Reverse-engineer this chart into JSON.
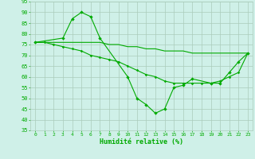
{
  "xlabel": "Humidité relative (%)",
  "background_color": "#cff0e8",
  "grid_color": "#aaccbb",
  "line_color": "#00aa00",
  "xlim": [
    -0.5,
    23.5
  ],
  "ylim": [
    35,
    95
  ],
  "yticks": [
    35,
    40,
    45,
    50,
    55,
    60,
    65,
    70,
    75,
    80,
    85,
    90,
    95
  ],
  "xticks": [
    0,
    1,
    2,
    3,
    4,
    5,
    6,
    7,
    8,
    9,
    10,
    11,
    12,
    13,
    14,
    15,
    16,
    17,
    18,
    19,
    20,
    21,
    22,
    23
  ],
  "series1_x": [
    0,
    1,
    2,
    3,
    4,
    5,
    6,
    7,
    8,
    9,
    10,
    11,
    12,
    13,
    14,
    15,
    16,
    17,
    18,
    19,
    20,
    21,
    22,
    23
  ],
  "series1_y": [
    76,
    76,
    76,
    76,
    76,
    76,
    76,
    76,
    75,
    75,
    74,
    74,
    73,
    73,
    72,
    72,
    72,
    71,
    71,
    71,
    71,
    71,
    71,
    71
  ],
  "series2_x": [
    0,
    1,
    2,
    3,
    4,
    5,
    6,
    7,
    8,
    9,
    10,
    11,
    12,
    13,
    14,
    15,
    16,
    17,
    18,
    19,
    20,
    21,
    22,
    23
  ],
  "series2_y": [
    76,
    76,
    75,
    74,
    73,
    72,
    70,
    69,
    68,
    67,
    65,
    63,
    61,
    60,
    58,
    57,
    57,
    57,
    57,
    57,
    58,
    60,
    62,
    71
  ],
  "series3_x": [
    0,
    3,
    4,
    5,
    6,
    7,
    10,
    11,
    12,
    13,
    14,
    15,
    16,
    17,
    19,
    20,
    21,
    22,
    23
  ],
  "series3_y": [
    76,
    78,
    87,
    90,
    88,
    78,
    60,
    50,
    47,
    43,
    45,
    55,
    56,
    59,
    57,
    57,
    62,
    67,
    71
  ]
}
